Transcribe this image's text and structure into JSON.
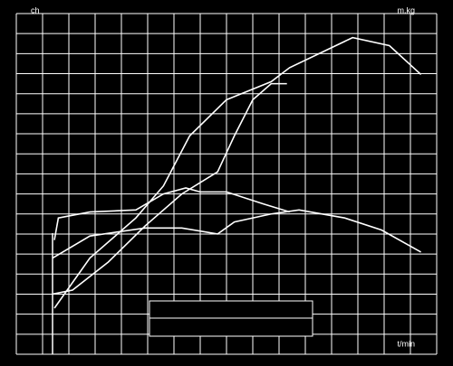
{
  "chart_data": {
    "type": "line",
    "y_label": "ch",
    "y2_label": "m.kg",
    "x_label": "t/min",
    "xlim": [
      0,
      16
    ],
    "ylim": [
      0,
      17
    ],
    "xticks": [
      0,
      1,
      2,
      3,
      4,
      5,
      6,
      7,
      8,
      9,
      10,
      11,
      12,
      13,
      14,
      15,
      16
    ],
    "yticks": [
      0,
      1,
      2,
      3,
      4,
      5,
      6,
      7,
      8,
      9,
      10,
      11,
      12,
      13,
      14,
      15,
      16,
      17
    ],
    "grid": true,
    "series": [
      {
        "color": "#ffffff",
        "x": [
          1.45,
          2.8,
          4.55,
          5.6,
          6.6,
          8.0,
          9.7,
          10.4,
          12.8,
          14.2,
          15.4
        ],
        "values": [
          2.3,
          4.8,
          6.8,
          8.4,
          10.9,
          12.7,
          13.6,
          14.3,
          15.8,
          15.4,
          13.96
        ]
      },
      {
        "color": "#ffffff",
        "x": [
          1.38,
          2.14,
          3.5,
          4.9,
          6.3,
          7.66,
          8.3,
          9.0,
          9.7,
          10.3
        ],
        "values": [
          3.0,
          3.2,
          4.6,
          6.4,
          8.0,
          9.1,
          10.9,
          12.7,
          13.5,
          13.5
        ]
      },
      {
        "color": "#ffffff",
        "x": [
          1.45,
          1.6,
          2.8,
          4.55,
          5.6,
          6.45,
          7.0,
          8.0,
          9.4,
          10.4
        ],
        "values": [
          5.7,
          6.8,
          7.1,
          7.2,
          8.0,
          8.3,
          8.1,
          8.1,
          7.5,
          7.1
        ]
      },
      {
        "color": "#ffffff",
        "x": [
          1.38,
          2.8,
          4.9,
          6.3,
          7.66,
          8.3,
          9.7,
          10.76,
          12.5,
          13.9,
          15.4
        ],
        "values": [
          4.8,
          5.9,
          6.3,
          6.3,
          6.0,
          6.6,
          7.0,
          7.2,
          6.8,
          6.2,
          5.1
        ]
      }
    ]
  }
}
